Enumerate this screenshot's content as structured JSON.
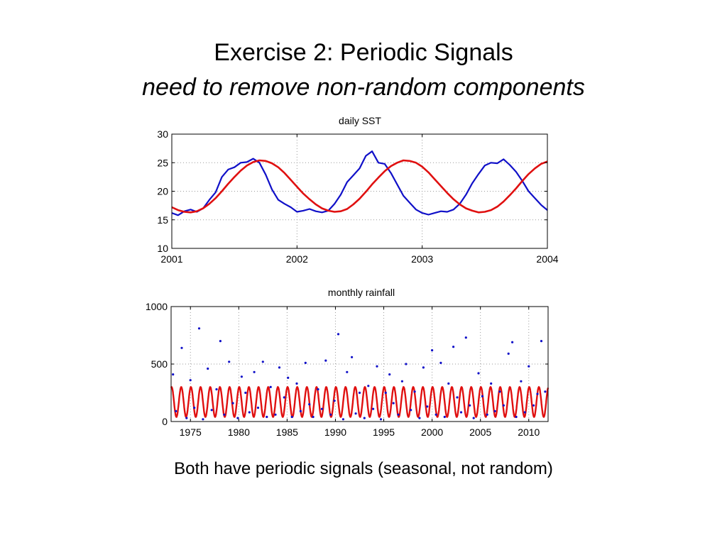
{
  "slide": {
    "title": "Exercise 2: Periodic Signals",
    "subtitle": "need to remove non-random components",
    "caption": "Both have periodic signals (seasonal, not random)"
  },
  "colors": {
    "observed": "#1010c8",
    "fit": "#e01010",
    "grid": "#9a9a9a"
  },
  "chart_data": [
    {
      "type": "line",
      "title": "daily SST",
      "xlabel": "",
      "ylabel": "",
      "xlim": [
        2001,
        2004
      ],
      "ylim": [
        10,
        30
      ],
      "x_ticks": [
        2001,
        2002,
        2003,
        2004
      ],
      "y_ticks": [
        10,
        15,
        20,
        25,
        30
      ],
      "grid": true,
      "series": [
        {
          "role": "observed",
          "color": "#1010c8",
          "x": [
            2001.0,
            2001.05,
            2001.1,
            2001.15,
            2001.2,
            2001.25,
            2001.3,
            2001.35,
            2001.4,
            2001.45,
            2001.5,
            2001.55,
            2001.6,
            2001.65,
            2001.7,
            2001.75,
            2001.8,
            2001.85,
            2001.9,
            2001.95,
            2002.0,
            2002.05,
            2002.1,
            2002.15,
            2002.2,
            2002.25,
            2002.3,
            2002.35,
            2002.4,
            2002.45,
            2002.5,
            2002.55,
            2002.6,
            2002.65,
            2002.7,
            2002.75,
            2002.8,
            2002.85,
            2002.9,
            2002.95,
            2003.0,
            2003.05,
            2003.1,
            2003.15,
            2003.2,
            2003.25,
            2003.3,
            2003.35,
            2003.4,
            2003.45,
            2003.5,
            2003.55,
            2003.6,
            2003.65,
            2003.7,
            2003.75,
            2003.8,
            2003.85,
            2003.9,
            2003.95,
            2004.0
          ],
          "y": [
            16.2,
            15.8,
            16.5,
            16.8,
            16.4,
            17.0,
            18.5,
            19.8,
            22.5,
            23.8,
            24.2,
            25.0,
            25.1,
            25.7,
            25.0,
            22.9,
            20.3,
            18.5,
            17.8,
            17.2,
            16.4,
            16.6,
            16.9,
            16.5,
            16.3,
            16.6,
            17.8,
            19.4,
            21.6,
            22.8,
            24.0,
            26.2,
            27.0,
            25.0,
            24.8,
            23.2,
            21.2,
            19.2,
            18.0,
            16.8,
            16.2,
            15.9,
            16.2,
            16.5,
            16.4,
            16.8,
            17.8,
            19.4,
            21.4,
            23.0,
            24.5,
            25.0,
            24.9,
            25.6,
            24.6,
            23.4,
            21.8,
            20.0,
            18.8,
            17.6,
            16.7
          ]
        },
        {
          "role": "fit",
          "color": "#e01010",
          "x": [
            2001.0,
            2001.05,
            2001.1,
            2001.15,
            2001.2,
            2001.25,
            2001.3,
            2001.35,
            2001.4,
            2001.45,
            2001.5,
            2001.55,
            2001.6,
            2001.65,
            2001.7,
            2001.75,
            2001.8,
            2001.85,
            2001.9,
            2001.95,
            2002.0,
            2002.05,
            2002.1,
            2002.15,
            2002.2,
            2002.25,
            2002.3,
            2002.35,
            2002.4,
            2002.45,
            2002.5,
            2002.55,
            2002.6,
            2002.65,
            2002.7,
            2002.75,
            2002.8,
            2002.85,
            2002.9,
            2002.95,
            2003.0,
            2003.05,
            2003.1,
            2003.15,
            2003.2,
            2003.25,
            2003.3,
            2003.35,
            2003.4,
            2003.45,
            2003.5,
            2003.55,
            2003.6,
            2003.65,
            2003.7,
            2003.75,
            2003.8,
            2003.85,
            2003.9,
            2003.95,
            2004.0
          ],
          "y": [
            17.2,
            16.7,
            16.4,
            16.3,
            16.5,
            17.0,
            17.8,
            18.8,
            20.0,
            21.3,
            22.5,
            23.6,
            24.5,
            25.1,
            25.4,
            25.3,
            24.9,
            24.2,
            23.2,
            22.0,
            20.8,
            19.6,
            18.6,
            17.7,
            17.0,
            16.6,
            16.4,
            16.5,
            16.9,
            17.7,
            18.7,
            19.9,
            21.2,
            22.4,
            23.5,
            24.4,
            25.0,
            25.4,
            25.3,
            25.0,
            24.3,
            23.3,
            22.1,
            20.9,
            19.7,
            18.6,
            17.7,
            17.0,
            16.6,
            16.3,
            16.4,
            16.7,
            17.3,
            18.2,
            19.3,
            20.5,
            21.8,
            23.0,
            24.0,
            24.8,
            25.2
          ]
        }
      ]
    },
    {
      "type": "scatter",
      "title": "monthly rainfall",
      "xlabel": "",
      "ylabel": "",
      "xlim": [
        1973,
        2012
      ],
      "ylim": [
        0,
        1000
      ],
      "x_ticks": [
        1975,
        1980,
        1985,
        1990,
        1995,
        2000,
        2005,
        2010
      ],
      "y_ticks": [
        0,
        500,
        1000
      ],
      "grid": true,
      "fit": {
        "mean": 170,
        "amplitude": 130,
        "period_years": 1,
        "peak_offset_years": 0.05,
        "color": "#e01010"
      },
      "series": [
        {
          "role": "observed",
          "color": "#1010c8",
          "x": [
            1973.2,
            1973.5,
            1974.1,
            1974.6,
            1975.0,
            1975.4,
            1975.9,
            1976.3,
            1976.8,
            1977.2,
            1977.7,
            1978.1,
            1978.5,
            1979.0,
            1979.4,
            1979.9,
            1980.3,
            1980.7,
            1981.1,
            1981.6,
            1982.0,
            1982.5,
            1982.9,
            1983.3,
            1983.8,
            1984.2,
            1984.7,
            1985.1,
            1985.5,
            1986.0,
            1986.4,
            1986.9,
            1987.3,
            1987.7,
            1988.2,
            1988.6,
            1989.0,
            1989.5,
            1989.9,
            1990.3,
            1990.8,
            1991.2,
            1991.7,
            1992.1,
            1992.5,
            1993.0,
            1993.4,
            1993.9,
            1994.3,
            1994.7,
            1995.2,
            1995.6,
            1996.0,
            1996.5,
            1996.9,
            1997.3,
            1997.8,
            1998.2,
            1998.7,
            1999.1,
            1999.5,
            2000.0,
            2000.4,
            2000.9,
            2001.3,
            2001.7,
            2002.2,
            2002.6,
            2003.0,
            2003.5,
            2003.9,
            2004.3,
            2004.8,
            2005.2,
            2005.7,
            2006.1,
            2006.5,
            2007.0,
            2007.4,
            2007.9,
            2008.3,
            2008.7,
            2009.2,
            2009.6,
            2010.0,
            2010.5,
            2010.9,
            2011.3,
            2011.7
          ],
          "y": [
            410,
            90,
            640,
            30,
            360,
            120,
            810,
            20,
            460,
            100,
            280,
            700,
            60,
            520,
            160,
            30,
            390,
            250,
            80,
            430,
            120,
            520,
            40,
            300,
            60,
            470,
            210,
            380,
            40,
            330,
            90,
            510,
            150,
            40,
            280,
            110,
            530,
            60,
            180,
            760,
            20,
            430,
            560,
            70,
            250,
            30,
            310,
            110,
            480,
            20,
            250,
            410,
            160,
            60,
            350,
            500,
            100,
            260,
            30,
            470,
            130,
            620,
            60,
            510,
            40,
            330,
            650,
            210,
            80,
            730,
            140,
            30,
            420,
            220,
            60,
            330,
            90,
            260,
            140,
            590,
            690,
            40,
            350,
            80,
            480,
            140,
            240,
            700,
            260
          ]
        }
      ]
    }
  ]
}
